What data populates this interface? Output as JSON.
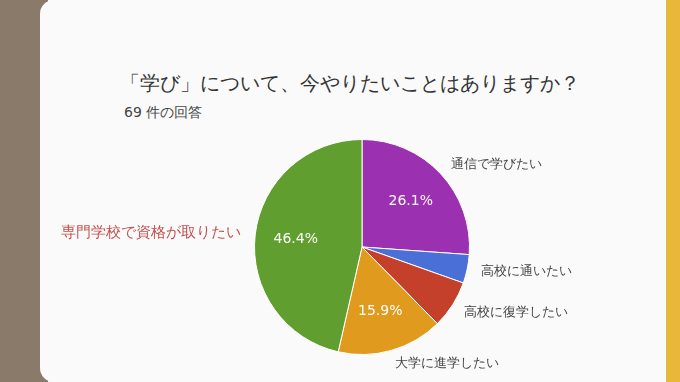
{
  "chart_data": {
    "type": "pie",
    "title": "「学び」について、今やりたいことはありますか？",
    "subtitle": "69 件の回答",
    "categories": [
      "通信で学びたい",
      "高校に通いたい",
      "高校に復学したい",
      "大学に進学したい",
      "専門学校で資格が取りたい"
    ],
    "values": [
      26.1,
      4.3,
      7.2,
      15.9,
      46.4
    ],
    "value_labels": [
      "26.1%",
      null,
      null,
      "15.9%",
      "46.4%"
    ],
    "colors": [
      "#9b30b0",
      "#4a6fd6",
      "#c4402a",
      "#e09a1e",
      "#5f9e2f"
    ],
    "data_labels": true
  }
}
